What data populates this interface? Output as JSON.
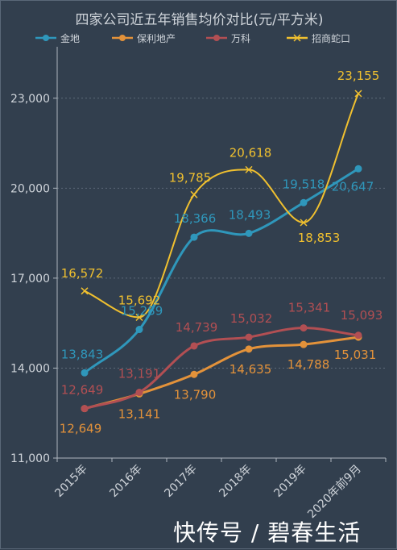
{
  "chart_data": {
    "type": "line",
    "title": "四家公司近五年销售均价对比(元/平方米)",
    "categories": [
      "2015年",
      "2016年",
      "2017年",
      "2018年",
      "2019年",
      "2020年前9月"
    ],
    "ylim": [
      11000,
      24500
    ],
    "yticks": [
      11000,
      14000,
      17000,
      20000,
      23000
    ],
    "ytick_labels": [
      "11,000",
      "14,000",
      "17,000",
      "20,000",
      "23,000"
    ],
    "grid": true,
    "legend_position": "top",
    "series": [
      {
        "name": "金地",
        "color": "#2f97bb",
        "marker": "circle",
        "values": [
          13843,
          15289,
          18366,
          18493,
          19518,
          20647
        ],
        "labels": [
          "13,843",
          "15,289",
          "18,366",
          "18,493",
          "19,518",
          "20,647"
        ]
      },
      {
        "name": "保利地产",
        "color": "#e3923a",
        "marker": "circle",
        "values": [
          12649,
          13141,
          13790,
          14635,
          14788,
          15031
        ],
        "labels": [
          "12,649",
          "13,141",
          "13,790",
          "14,635",
          "14,788",
          "15,031"
        ]
      },
      {
        "name": "万科",
        "color": "#b24f53",
        "marker": "circle",
        "values": [
          12649,
          13191,
          14739,
          15032,
          15341,
          15093
        ],
        "labels": [
          "12,649",
          "13,191",
          "14,739",
          "15,032",
          "15,341",
          "15,093"
        ]
      },
      {
        "name": "招商蛇口",
        "color": "#f0c02f",
        "marker": "x",
        "values": [
          16572,
          15692,
          19785,
          20618,
          18853,
          23155
        ],
        "labels": [
          "16,572",
          "15,692",
          "19,785",
          "20,618",
          "18,853",
          "23,155"
        ]
      }
    ]
  },
  "watermark": "快传号 / 碧春生活"
}
